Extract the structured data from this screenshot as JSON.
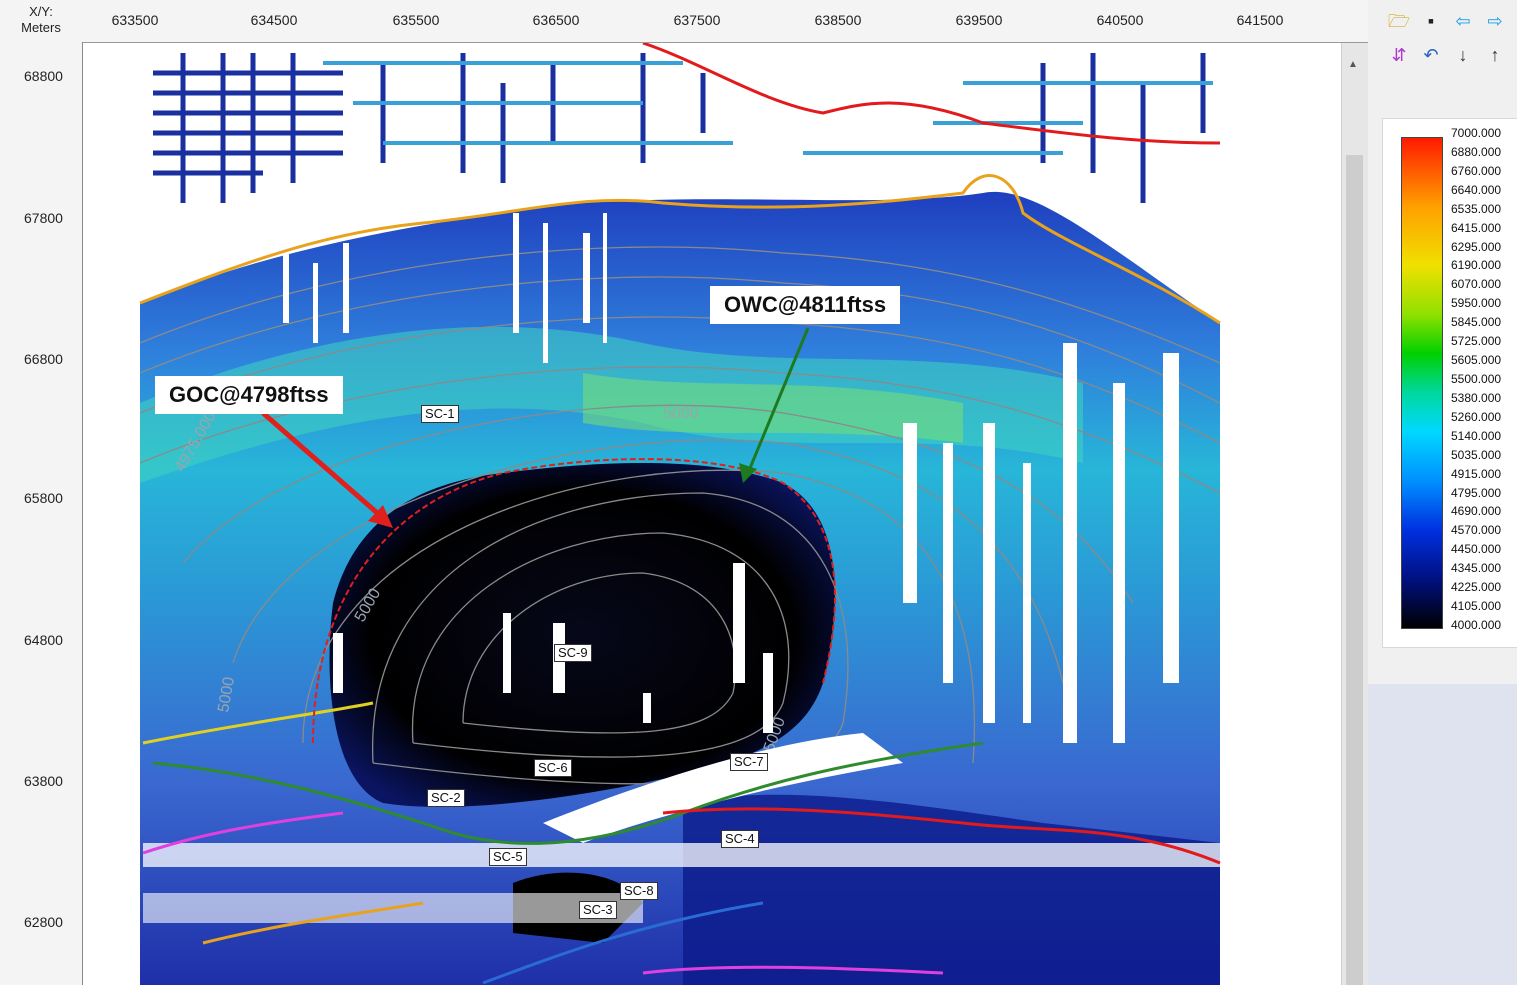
{
  "ruler": {
    "corner_label_line1": "X/Y:",
    "corner_label_line2": "Meters",
    "x_ticks": [
      "633500",
      "634500",
      "635500",
      "636500",
      "637500",
      "638500",
      "639500",
      "640500",
      "641500"
    ],
    "y_ticks": [
      "68800",
      "67800",
      "66800",
      "65800",
      "64800",
      "63800",
      "62800"
    ]
  },
  "map": {
    "annotations": {
      "goc": "GOC@4798ftss",
      "owc": "OWC@4811ftss"
    },
    "contour_labels": [
      "4975.000",
      "5000",
      "5000",
      "5000",
      "5000"
    ],
    "wells": [
      "SC-1",
      "SC-2",
      "SC-3",
      "SC-4",
      "SC-5",
      "SC-6",
      "SC-7",
      "SC-8",
      "SC-9"
    ],
    "colors": {
      "goc_line": "#e0201c",
      "owc_arrow": "#1e7a1e",
      "fault_red": "#e31a1c",
      "fault_orange": "#e9a21b",
      "fault_green": "#2e8b2e"
    }
  },
  "toolbar": {
    "icons": [
      "open-folder-icon",
      "save-icon",
      "arrow-left-icon",
      "arrow-right-icon",
      "palette-icon",
      "undo-icon",
      "sort-desc-icon",
      "sort-asc-icon"
    ]
  },
  "colorbar": {
    "labels": [
      "7000.000",
      "6880.000",
      "6760.000",
      "6640.000",
      "6535.000",
      "6415.000",
      "6295.000",
      "6190.000",
      "6070.000",
      "5950.000",
      "5845.000",
      "5725.000",
      "5605.000",
      "5500.000",
      "5380.000",
      "5260.000",
      "5140.000",
      "5035.000",
      "4915.000",
      "4795.000",
      "4690.000",
      "4570.000",
      "4450.000",
      "4345.000",
      "4225.000",
      "4105.000",
      "4000.000"
    ]
  }
}
